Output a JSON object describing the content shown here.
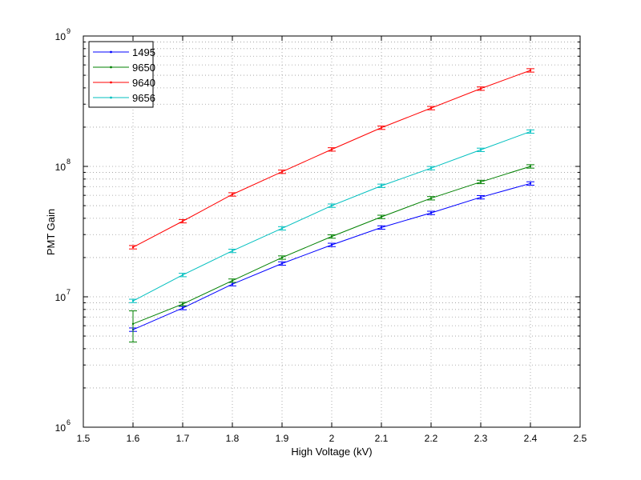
{
  "chart_data": {
    "type": "line",
    "xlabel": "High Voltage (kV)",
    "ylabel": "PMT Gain",
    "xlim": [
      1.5,
      2.5
    ],
    "ylim": [
      1000000,
      1000000000
    ],
    "yscale": "log",
    "grid": true,
    "legend_position": "top-left",
    "x_ticks": [
      "1.5",
      "1.6",
      "1.7",
      "1.8",
      "1.9",
      "2",
      "2.1",
      "2.2",
      "2.3",
      "2.4",
      "2.5"
    ],
    "y_ticks": [
      {
        "base": "10",
        "exp": "6"
      },
      {
        "base": "10",
        "exp": "7"
      },
      {
        "base": "10",
        "exp": "8"
      },
      {
        "base": "10",
        "exp": "9"
      }
    ],
    "x": [
      1.6,
      1.7,
      1.8,
      1.9,
      2.0,
      2.1,
      2.2,
      2.3,
      2.4
    ],
    "series": [
      {
        "name": "1495",
        "color": "#0000ff",
        "values": [
          5600000,
          8200000,
          12500000,
          18000000,
          25000000,
          34000000,
          44000000,
          58000000,
          74000000
        ]
      },
      {
        "name": "9650",
        "color": "#008000",
        "values": [
          6200000,
          8800000,
          13300000,
          20000000,
          29000000,
          41000000,
          57000000,
          76000000,
          100000000
        ]
      },
      {
        "name": "9640",
        "color": "#ff0000",
        "values": [
          24000000,
          38000000,
          61000000,
          91000000,
          135000000,
          198000000,
          280000000,
          395000000,
          545000000
        ]
      },
      {
        "name": "9656",
        "color": "#00bfbf",
        "values": [
          9300000,
          14700000,
          22500000,
          33500000,
          50000000,
          71000000,
          97000000,
          134000000,
          185000000
        ]
      }
    ],
    "error_bar_relative": 0.03,
    "error_bar_special": {
      "series": "9650",
      "x": 1.6,
      "low": 4500000,
      "high": 7800000
    }
  }
}
